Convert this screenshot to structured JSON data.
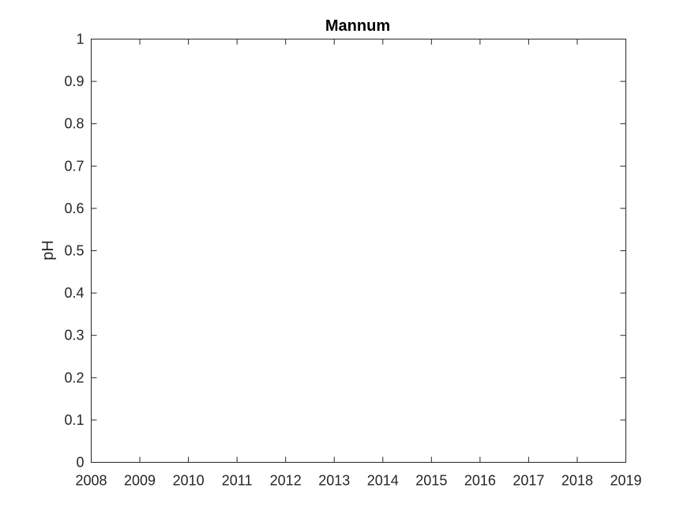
{
  "chart_data": {
    "type": "line",
    "title": "Mannum",
    "xlabel": "",
    "ylabel": "pH",
    "xlim": [
      2008,
      2019
    ],
    "ylim": [
      0,
      1
    ],
    "x_ticks": [
      "2008",
      "2009",
      "2010",
      "2011",
      "2012",
      "2013",
      "2014",
      "2015",
      "2016",
      "2017",
      "2018",
      "2019"
    ],
    "y_ticks": [
      "0",
      "0.1",
      "0.2",
      "0.3",
      "0.4",
      "0.5",
      "0.6",
      "0.7",
      "0.8",
      "0.9",
      "1"
    ],
    "grid": false,
    "series": []
  }
}
